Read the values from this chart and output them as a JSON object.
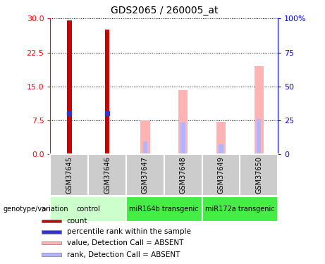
{
  "title": "GDS2065 / 260005_at",
  "samples": [
    "GSM37645",
    "GSM37646",
    "GSM37647",
    "GSM37648",
    "GSM37649",
    "GSM37650"
  ],
  "count_values": [
    29.5,
    27.5,
    0,
    0,
    0,
    0
  ],
  "percentile_values": [
    9.0,
    9.0,
    0,
    0,
    0,
    0
  ],
  "absent_value_bars": [
    0,
    0,
    7.5,
    14.2,
    7.2,
    19.5
  ],
  "absent_rank_bars": [
    0,
    0,
    2.8,
    7.0,
    2.2,
    7.8
  ],
  "ylim_left": [
    0,
    30
  ],
  "ylim_right": [
    0,
    100
  ],
  "yticks_left": [
    0,
    7.5,
    15,
    22.5,
    30
  ],
  "yticks_right": [
    0,
    25,
    50,
    75,
    100
  ],
  "color_count": "#cc0000",
  "color_percentile": "#3333cc",
  "color_absent_value": "#ffb3b3",
  "color_absent_rank": "#b3b3ff",
  "color_sample_bg": "#cccccc",
  "color_group_light": "#ccffcc",
  "color_group_mid": "#55ee55",
  "legend_items": [
    {
      "color": "#cc0000",
      "label": "count"
    },
    {
      "color": "#3333cc",
      "label": "percentile rank within the sample"
    },
    {
      "color": "#ffb3b3",
      "label": "value, Detection Call = ABSENT"
    },
    {
      "color": "#b3b3ff",
      "label": "rank, Detection Call = ABSENT"
    }
  ],
  "groups": [
    {
      "label": "control",
      "start": 0,
      "end": 2,
      "color": "#ccffcc"
    },
    {
      "label": "miR164b transgenic",
      "start": 2,
      "end": 4,
      "color": "#44ee44"
    },
    {
      "label": "miR172a transgenic",
      "start": 4,
      "end": 6,
      "color": "#44ee44"
    }
  ]
}
